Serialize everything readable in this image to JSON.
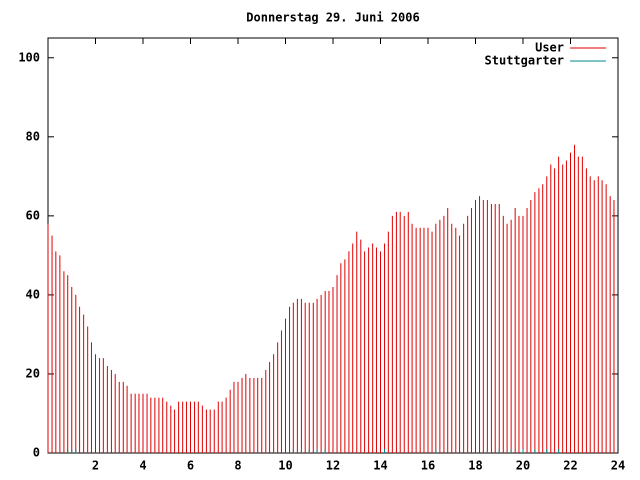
{
  "chart_data": {
    "type": "impulse",
    "title": "Donnerstag 29. Juni 2006",
    "xlim": [
      0,
      24
    ],
    "xticks": [
      2,
      4,
      6,
      8,
      10,
      12,
      14,
      16,
      18,
      20,
      22,
      24
    ],
    "ylim": [
      0,
      105
    ],
    "yticks": [
      0,
      20,
      40,
      60,
      80,
      100
    ],
    "legend": "top-right",
    "series": [
      {
        "name": "User",
        "color": "#e00000",
        "x": [
          0,
          0.17,
          0.33,
          0.5,
          0.67,
          0.83,
          1,
          1.17,
          1.33,
          1.5,
          1.67,
          1.83,
          2,
          2.17,
          2.33,
          2.5,
          2.67,
          2.83,
          3,
          3.17,
          3.33,
          3.5,
          3.67,
          3.83,
          4,
          4.17,
          4.33,
          4.5,
          4.67,
          4.83,
          5,
          5.17,
          5.33,
          5.5,
          5.67,
          5.83,
          6,
          6.17,
          6.33,
          6.5,
          6.67,
          6.83,
          7,
          7.17,
          7.33,
          7.5,
          7.67,
          7.83,
          8,
          8.17,
          8.33,
          8.5,
          8.67,
          8.83,
          9,
          9.17,
          9.33,
          9.5,
          9.67,
          9.83,
          10,
          10.17,
          10.33,
          10.5,
          10.67,
          10.83,
          11,
          11.17,
          11.33,
          11.5,
          11.67,
          11.83,
          12,
          12.17,
          12.33,
          12.5,
          12.67,
          12.83,
          13,
          13.17,
          13.33,
          13.5,
          13.67,
          13.83,
          14,
          14.17,
          14.33,
          14.5,
          14.67,
          14.83,
          15,
          15.17,
          15.33,
          15.5,
          15.67,
          15.83,
          16,
          16.17,
          16.33,
          16.5,
          16.67,
          16.83,
          17,
          17.17,
          17.33,
          17.5,
          17.67,
          17.83,
          18,
          18.17,
          18.33,
          18.5,
          18.67,
          18.83,
          19,
          19.17,
          19.33,
          19.5,
          19.67,
          19.83,
          20,
          20.17,
          20.33,
          20.5,
          20.67,
          20.83,
          21,
          21.17,
          21.33,
          21.5,
          21.67,
          21.83,
          22,
          22.17,
          22.33,
          22.5,
          22.67,
          22.83,
          23,
          23.17,
          23.33,
          23.5,
          23.67,
          23.83
        ],
        "values": [
          58,
          55,
          51,
          50,
          46,
          45,
          42,
          40,
          37,
          35,
          32,
          28,
          25,
          24,
          24,
          22,
          21,
          20,
          18,
          18,
          17,
          15,
          15,
          15,
          15,
          15,
          14,
          14,
          14,
          14,
          13,
          12,
          11,
          13,
          13,
          13,
          13,
          13,
          13,
          12,
          11,
          11,
          11,
          13,
          13,
          14,
          16,
          18,
          18,
          19,
          20,
          19,
          19,
          19,
          19,
          21,
          23,
          25,
          28,
          31,
          34,
          37,
          38,
          39,
          39,
          38,
          38,
          38,
          39,
          40,
          41,
          41,
          42,
          45,
          48,
          49,
          51,
          53,
          56,
          54,
          51,
          52,
          53,
          52,
          51,
          53,
          56,
          60,
          61,
          61,
          60,
          61,
          58,
          57,
          57,
          57,
          57,
          56,
          58,
          59,
          60,
          62,
          58,
          57,
          55,
          58,
          60,
          62,
          64,
          65,
          64,
          64,
          63,
          63,
          63,
          60,
          58,
          59,
          62,
          60,
          60,
          62,
          64,
          66,
          67,
          68,
          70,
          73,
          72,
          75,
          73,
          74,
          76,
          78,
          75,
          75,
          72,
          70,
          69,
          70,
          69,
          68,
          65,
          64
        ]
      },
      {
        "name": "Stuttgarter",
        "color": "#008b8b",
        "x": [
          0.83,
          1,
          1.17,
          10.33,
          10.67,
          11,
          11.33,
          11.67,
          14.17,
          16.33,
          18.5,
          19,
          19.5,
          20,
          20.5,
          21,
          21.5
        ],
        "values": [
          1,
          1,
          1,
          1,
          1,
          1,
          1,
          1,
          1,
          1,
          1,
          1,
          1,
          1,
          1,
          1,
          1
        ]
      }
    ]
  }
}
